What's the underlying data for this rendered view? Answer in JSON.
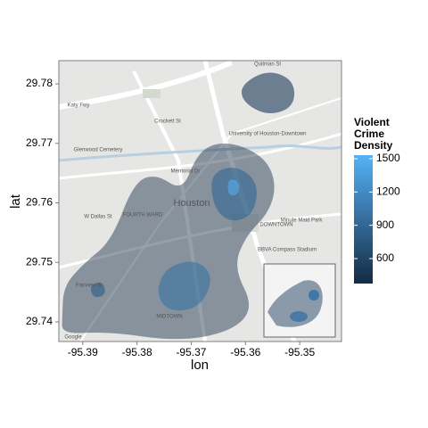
{
  "chart_data": {
    "type": "density_map",
    "x_label": "lon",
    "y_label": "lat",
    "xlim": [
      -95.3944,
      -95.3423
    ],
    "ylim": [
      29.7367,
      29.7839
    ],
    "xticks": [
      -95.39,
      -95.38,
      -95.37,
      -95.36,
      -95.35
    ],
    "yticks": [
      29.74,
      29.75,
      29.76,
      29.77,
      29.78
    ],
    "legend_title": "Violent Crime Density",
    "clim": [
      375,
      1532
    ],
    "cticks": [
      600,
      900,
      1200,
      1500
    ],
    "colors": [
      "#132b43",
      "#56b1f7"
    ],
    "contours": [
      {
        "level": 380,
        "lon": [
          -95.3938,
          -95.3935,
          -95.3897,
          -95.3847,
          -95.3806,
          -95.3765,
          -95.3716,
          -95.3691,
          -95.3658,
          -95.3609,
          -95.3559,
          -95.3543,
          -95.3559,
          -95.36,
          -95.3622,
          -95.3584,
          -95.3625,
          -95.3724,
          -95.3856,
          -95.3938
        ],
        "lat": [
          29.7409,
          29.7461,
          29.7499,
          29.7536,
          29.7634,
          29.7649,
          29.7619,
          29.7679,
          29.7701,
          29.7698,
          29.7671,
          29.7626,
          29.7581,
          29.7544,
          29.7491,
          29.7424,
          29.7384,
          29.7367,
          29.7384,
          29.7379
        ]
      },
      {
        "level": 500,
        "lon": [
          -95.3609,
          -95.3559,
          -95.351,
          -95.351,
          -95.3559,
          -95.3605
        ],
        "lat": [
          29.7798,
          29.7824,
          29.7806,
          29.7761,
          29.7746,
          29.7769
        ]
      },
      {
        "level": 900,
        "lon": [
          -95.3666,
          -95.3617,
          -95.3576,
          -95.3584,
          -95.3625,
          -95.3658
        ],
        "lat": [
          29.7649,
          29.7664,
          29.7634,
          29.7581,
          29.7566,
          29.7589
        ]
      },
      {
        "level": 1000,
        "lon": [
          -95.3749,
          -95.3691,
          -95.3658,
          -95.3683,
          -95.374,
          -95.3765
        ],
        "lat": [
          29.7491,
          29.7506,
          29.7476,
          29.7424,
          29.7416,
          29.7446
        ]
      },
      {
        "level": 800,
        "lon": [
          -95.3888,
          -95.3864,
          -95.3856,
          -95.388
        ],
        "lat": [
          29.7461,
          29.7469,
          29.7446,
          29.7439
        ]
      },
      {
        "level": 1500,
        "lon": [
          -95.3633,
          -95.3612,
          -95.3612,
          -95.3632
        ],
        "lat": [
          29.7641,
          29.7637,
          29.7614,
          29.7611
        ]
      }
    ],
    "map_labels": [
      "Quitman St",
      "Katy Fwy",
      "Crockett St",
      "Glenwood Cemetery",
      "Memorial Dr",
      "W Dallas St",
      "FOURTH WARD",
      "Houston",
      "University of Houston-Downtown",
      "Minute Maid Park",
      "BBVA Compass Stadium",
      "Fairview St",
      "MIDTOWN",
      "DOWNTOWN",
      "Google"
    ]
  }
}
